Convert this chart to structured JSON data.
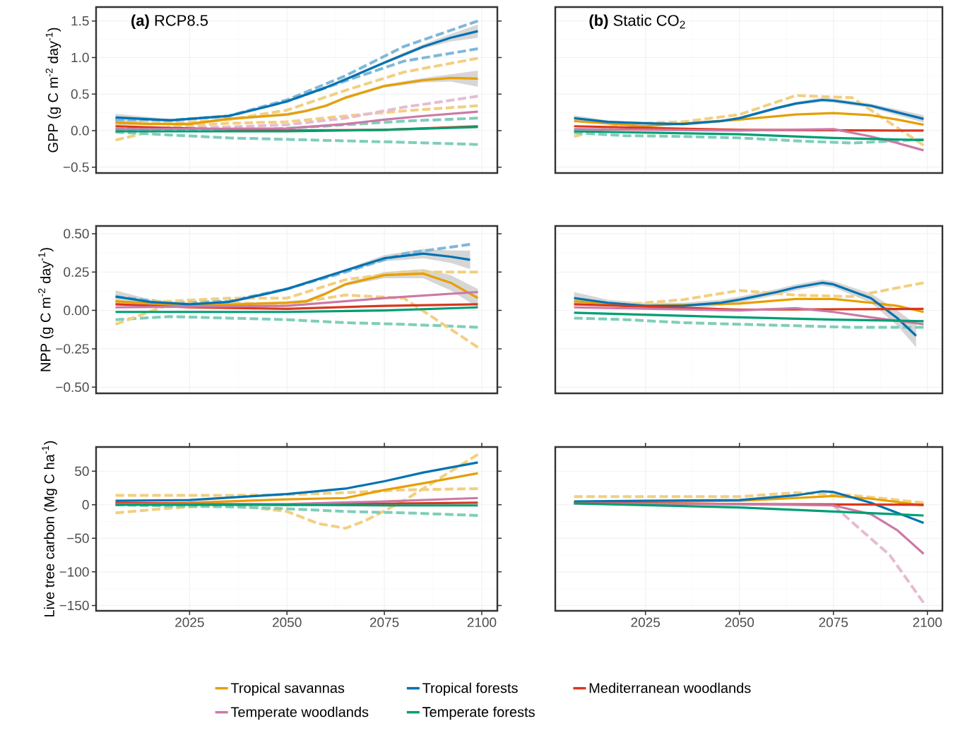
{
  "chart_data": [
    {
      "type": "line",
      "title": "**(a)** RCP8.5",
      "ylabel": "GPP (g C m$^{-2}$ day$^{-1}$)",
      "xlim": [
        2001,
        2104
      ],
      "ylim": [
        -0.58,
        1.69
      ],
      "xticks": [
        2025,
        2050,
        2075,
        2100
      ],
      "yticks": [
        {
          "value": -0.5,
          "label": "−0.5"
        },
        {
          "value": 0,
          "label": "0.0"
        },
        {
          "value": 0.5,
          "label": "0.5"
        },
        {
          "value": 1,
          "label": "1.0"
        },
        {
          "value": 1.5,
          "label": "1.5"
        }
      ],
      "grid": true,
      "tick_labels": "y",
      "line_style": "solid",
      "series": [
        {
          "color": "#E69F00",
          "x": [
            2006,
            2015,
            2025,
            2035,
            2045,
            2050,
            2055,
            2060,
            2065,
            2075,
            2085,
            2092,
            2099
          ],
          "values": [
            0.11,
            0.09,
            0.09,
            0.16,
            0.2,
            0.22,
            0.27,
            0.34,
            0.45,
            0.61,
            0.69,
            0.72,
            0.71
          ],
          "lower": [
            0.07,
            0.08,
            0.07,
            0.14,
            0.18,
            0.2,
            0.25,
            0.32,
            0.43,
            0.59,
            0.66,
            0.67,
            0.6
          ],
          "upper": [
            0.15,
            0.11,
            0.11,
            0.18,
            0.22,
            0.24,
            0.29,
            0.36,
            0.47,
            0.63,
            0.72,
            0.77,
            0.82
          ]
        },
        {
          "color": "#0072B2",
          "x": [
            2006,
            2020,
            2035,
            2045,
            2050,
            2060,
            2065,
            2075,
            2085,
            2092,
            2099
          ],
          "values": [
            0.18,
            0.14,
            0.2,
            0.33,
            0.4,
            0.59,
            0.7,
            0.93,
            1.15,
            1.27,
            1.36
          ],
          "lower": [
            0.13,
            0.12,
            0.18,
            0.31,
            0.38,
            0.57,
            0.68,
            0.91,
            1.12,
            1.22,
            1.27
          ],
          "upper": [
            0.23,
            0.16,
            0.22,
            0.35,
            0.42,
            0.61,
            0.72,
            0.95,
            1.18,
            1.32,
            1.45
          ]
        },
        {
          "color": "#D9381E",
          "x": [
            2006,
            2025,
            2050,
            2075,
            2099
          ],
          "values": [
            0.06,
            0.03,
            0.0,
            0.01,
            0.06
          ]
        },
        {
          "color": "#CC79A7",
          "x": [
            2006,
            2050,
            2065,
            2075,
            2085,
            2099
          ],
          "values": [
            0.02,
            0.03,
            0.09,
            0.15,
            0.2,
            0.26
          ]
        },
        {
          "color": "#009E73",
          "x": [
            2006,
            2050,
            2075,
            2099
          ],
          "values": [
            -0.01,
            -0.01,
            0.01,
            0.05
          ]
        },
        {
          "color": "#7FB8D8",
          "line_style": "dashed",
          "x": [
            2006,
            2020,
            2035,
            2050,
            2065,
            2080,
            2099
          ],
          "values": [
            0.15,
            0.14,
            0.2,
            0.42,
            0.75,
            1.15,
            1.5
          ]
        },
        {
          "color": "#7FB8D8",
          "line_style": "dashed",
          "x": [
            2006,
            2020,
            2035,
            2050,
            2065,
            2080,
            2099
          ],
          "values": [
            0.15,
            0.14,
            0.2,
            0.4,
            0.68,
            0.95,
            1.12
          ]
        },
        {
          "color": "#F2CF80",
          "line_style": "dashed",
          "x": [
            2006,
            2020,
            2035,
            2050,
            2065,
            2080,
            2099
          ],
          "values": [
            0.1,
            0.1,
            0.15,
            0.28,
            0.55,
            0.8,
            0.99
          ]
        },
        {
          "color": "#F2CF80",
          "line_style": "dashed",
          "x": [
            2006,
            2020,
            2035,
            2050,
            2065,
            2080,
            2099
          ],
          "values": [
            -0.13,
            0.05,
            0.1,
            0.12,
            0.2,
            0.27,
            0.34
          ]
        },
        {
          "color": "#E5BCD3",
          "line_style": "dashed",
          "x": [
            2006,
            2020,
            2035,
            2050,
            2065,
            2080,
            2099
          ],
          "values": [
            0.05,
            0.03,
            0.05,
            0.08,
            0.17,
            0.32,
            0.47
          ]
        },
        {
          "color": "#7FCEB9",
          "line_style": "dashed",
          "x": [
            2006,
            2020,
            2035,
            2050,
            2065,
            2080,
            2099
          ],
          "values": [
            -0.02,
            -0.06,
            -0.1,
            -0.12,
            -0.14,
            -0.16,
            -0.19
          ]
        },
        {
          "color": "#7FCEB9",
          "line_style": "dashed",
          "x": [
            2006,
            2020,
            2035,
            2050,
            2065,
            2080,
            2099
          ],
          "values": [
            0.02,
            0.0,
            0.0,
            0.03,
            0.08,
            0.13,
            0.17
          ]
        }
      ]
    },
    {
      "type": "line",
      "title": "**(b)** Static CO$_{2}$",
      "xlim": [
        2001,
        2104
      ],
      "ylim": [
        -0.58,
        1.69
      ],
      "xticks": [
        2025,
        2050,
        2075,
        2100
      ],
      "yticks": [
        {
          "value": -0.5,
          "label": null
        },
        {
          "value": 0,
          "label": null
        },
        {
          "value": 0.5,
          "label": null
        },
        {
          "value": 1,
          "label": null
        },
        {
          "value": 1.5,
          "label": null
        }
      ],
      "grid": true,
      "tick_labels": false,
      "line_style": "solid",
      "series": [
        {
          "color": "#E69F00",
          "x": [
            2006,
            2025,
            2050,
            2065,
            2075,
            2085,
            2092,
            2099
          ],
          "values": [
            0.13,
            0.06,
            0.15,
            0.22,
            0.24,
            0.21,
            0.15,
            0.08
          ]
        },
        {
          "color": "#0072B2",
          "x": [
            2006,
            2015,
            2025,
            2035,
            2045,
            2050,
            2060,
            2065,
            2072,
            2075,
            2085,
            2092,
            2099
          ],
          "values": [
            0.17,
            0.12,
            0.1,
            0.09,
            0.13,
            0.17,
            0.31,
            0.37,
            0.42,
            0.41,
            0.34,
            0.25,
            0.16
          ],
          "lower": [
            0.13,
            0.1,
            0.08,
            0.07,
            0.11,
            0.15,
            0.29,
            0.35,
            0.39,
            0.38,
            0.31,
            0.21,
            0.11
          ],
          "upper": [
            0.21,
            0.14,
            0.12,
            0.11,
            0.15,
            0.19,
            0.33,
            0.39,
            0.45,
            0.44,
            0.37,
            0.29,
            0.21
          ]
        },
        {
          "color": "#D9381E",
          "x": [
            2006,
            2050,
            2099
          ],
          "values": [
            0.06,
            0.01,
            0.0
          ]
        },
        {
          "color": "#CC79A7",
          "x": [
            2006,
            2050,
            2075,
            2085,
            2092,
            2099
          ],
          "values": [
            0.02,
            0.0,
            0.02,
            -0.08,
            -0.17,
            -0.27
          ]
        },
        {
          "color": "#009E73",
          "x": [
            2006,
            2050,
            2075,
            2099
          ],
          "values": [
            -0.01,
            -0.05,
            -0.1,
            -0.13
          ]
        },
        {
          "color": "#F2CF80",
          "line_style": "dashed",
          "x": [
            2006,
            2020,
            2035,
            2050,
            2065,
            2080,
            2099
          ],
          "values": [
            -0.08,
            0.1,
            0.12,
            0.22,
            0.48,
            0.45,
            -0.2
          ]
        },
        {
          "color": "#7FCEB9",
          "line_style": "dashed",
          "x": [
            2006,
            2020,
            2035,
            2050,
            2065,
            2080,
            2099
          ],
          "values": [
            -0.03,
            -0.07,
            -0.08,
            -0.1,
            -0.14,
            -0.17,
            -0.12
          ]
        }
      ]
    },
    {
      "type": "line",
      "ylabel": "NPP (g C m$^{-2}$ day$^{-1}$)",
      "xlim": [
        2001,
        2104
      ],
      "ylim": [
        -0.54,
        0.55
      ],
      "xticks": [
        2025,
        2050,
        2075,
        2100
      ],
      "yticks": [
        {
          "value": -0.5,
          "label": "−0.50"
        },
        {
          "value": -0.25,
          "label": "−0.25"
        },
        {
          "value": 0,
          "label": "0.00"
        },
        {
          "value": 0.25,
          "label": "0.25"
        },
        {
          "value": 0.5,
          "label": "0.50"
        }
      ],
      "grid": true,
      "tick_labels": "y",
      "line_style": "solid",
      "series": [
        {
          "color": "#E69F00",
          "x": [
            2006,
            2025,
            2050,
            2055,
            2060,
            2065,
            2075,
            2085,
            2092,
            2099
          ],
          "values": [
            0.06,
            0.03,
            0.05,
            0.06,
            0.11,
            0.17,
            0.23,
            0.24,
            0.18,
            0.08
          ],
          "lower": [
            0.03,
            0.02,
            0.04,
            0.05,
            0.1,
            0.16,
            0.21,
            0.21,
            0.13,
            0.02
          ],
          "upper": [
            0.09,
            0.04,
            0.06,
            0.07,
            0.12,
            0.18,
            0.25,
            0.27,
            0.23,
            0.14
          ]
        },
        {
          "color": "#0072B2",
          "x": [
            2006,
            2015,
            2025,
            2035,
            2045,
            2050,
            2060,
            2065,
            2075,
            2085,
            2092,
            2097
          ],
          "values": [
            0.09,
            0.055,
            0.04,
            0.055,
            0.11,
            0.14,
            0.22,
            0.26,
            0.34,
            0.37,
            0.35,
            0.33
          ],
          "lower": [
            0.05,
            0.04,
            0.03,
            0.045,
            0.1,
            0.13,
            0.21,
            0.25,
            0.32,
            0.34,
            0.31,
            0.27
          ],
          "upper": [
            0.13,
            0.07,
            0.05,
            0.065,
            0.12,
            0.15,
            0.23,
            0.27,
            0.36,
            0.4,
            0.39,
            0.39
          ]
        },
        {
          "color": "#D9381E",
          "x": [
            2006,
            2025,
            2050,
            2075,
            2099
          ],
          "values": [
            0.04,
            0.02,
            0.01,
            0.03,
            0.04
          ]
        },
        {
          "color": "#CC79A7",
          "x": [
            2006,
            2050,
            2075,
            2099
          ],
          "values": [
            0.02,
            0.03,
            0.08,
            0.12
          ]
        },
        {
          "color": "#009E73",
          "x": [
            2006,
            2050,
            2075,
            2099
          ],
          "values": [
            -0.01,
            -0.01,
            0.0,
            0.02
          ]
        },
        {
          "color": "#7FB8D8",
          "line_style": "dashed",
          "x": [
            2006,
            2020,
            2035,
            2050,
            2065,
            2080,
            2097
          ],
          "values": [
            0.09,
            0.05,
            0.06,
            0.14,
            0.25,
            0.37,
            0.43
          ]
        },
        {
          "color": "#7FCEB9",
          "line_style": "dashed",
          "x": [
            2006,
            2020,
            2035,
            2050,
            2065,
            2080,
            2099
          ],
          "values": [
            -0.06,
            -0.04,
            -0.05,
            -0.06,
            -0.08,
            -0.09,
            -0.11
          ]
        },
        {
          "color": "#F2CF80",
          "line_style": "dashed",
          "x": [
            2006,
            2020,
            2035,
            2050,
            2065,
            2080,
            2099
          ],
          "values": [
            -0.09,
            0.04,
            0.05,
            0.04,
            0.1,
            0.08,
            -0.24
          ]
        },
        {
          "color": "#F2CF80",
          "line_style": "dashed",
          "x": [
            2006,
            2020,
            2035,
            2050,
            2065,
            2080,
            2099
          ],
          "values": [
            0.05,
            0.06,
            0.08,
            0.08,
            0.2,
            0.25,
            0.25
          ]
        }
      ]
    },
    {
      "type": "line",
      "xlim": [
        2001,
        2104
      ],
      "ylim": [
        -0.54,
        0.55
      ],
      "xticks": [
        2025,
        2050,
        2075,
        2100
      ],
      "yticks": [
        {
          "value": -0.5,
          "label": null
        },
        {
          "value": -0.25,
          "label": null
        },
        {
          "value": 0,
          "label": null
        },
        {
          "value": 0.25,
          "label": null
        },
        {
          "value": 0.5,
          "label": null
        }
      ],
      "grid": true,
      "tick_labels": false,
      "line_style": "solid",
      "series": [
        {
          "color": "#E69F00",
          "x": [
            2006,
            2025,
            2050,
            2065,
            2075,
            2085,
            2092,
            2099
          ],
          "values": [
            0.06,
            0.03,
            0.045,
            0.075,
            0.075,
            0.05,
            0.03,
            -0.01
          ]
        },
        {
          "color": "#0072B2",
          "x": [
            2006,
            2015,
            2025,
            2035,
            2045,
            2050,
            2060,
            2065,
            2072,
            2075,
            2085,
            2092,
            2097
          ],
          "values": [
            0.08,
            0.05,
            0.03,
            0.03,
            0.05,
            0.07,
            0.12,
            0.15,
            0.18,
            0.17,
            0.08,
            -0.05,
            -0.165
          ],
          "lower": [
            0.04,
            0.03,
            0.01,
            0.01,
            0.03,
            0.05,
            0.1,
            0.13,
            0.16,
            0.15,
            0.05,
            -0.1,
            -0.24
          ],
          "upper": [
            0.12,
            0.07,
            0.05,
            0.05,
            0.07,
            0.09,
            0.14,
            0.17,
            0.2,
            0.19,
            0.11,
            0.0,
            -0.09
          ]
        },
        {
          "color": "#D9381E",
          "x": [
            2006,
            2050,
            2099
          ],
          "values": [
            0.04,
            0.005,
            0.01
          ]
        },
        {
          "color": "#CC79A7",
          "x": [
            2006,
            2050,
            2065,
            2075,
            2085,
            2099
          ],
          "values": [
            0.02,
            0.0,
            0.015,
            -0.01,
            -0.045,
            -0.09
          ]
        },
        {
          "color": "#009E73",
          "x": [
            2006,
            2050,
            2075,
            2099
          ],
          "values": [
            -0.015,
            -0.045,
            -0.06,
            -0.07
          ]
        },
        {
          "color": "#7FCEB9",
          "line_style": "dashed",
          "x": [
            2006,
            2020,
            2035,
            2050,
            2065,
            2080,
            2099
          ],
          "values": [
            -0.05,
            -0.06,
            -0.08,
            -0.09,
            -0.1,
            -0.11,
            -0.11
          ]
        },
        {
          "color": "#F2CF80",
          "line_style": "dashed",
          "x": [
            2006,
            2020,
            2035,
            2050,
            2065,
            2080,
            2099
          ],
          "values": [
            0.04,
            0.04,
            0.07,
            0.13,
            0.1,
            0.09,
            0.18
          ]
        }
      ]
    },
    {
      "type": "line",
      "ylabel": "Live tree carbon (Mg C ha$^{-1}$)",
      "xlim": [
        2001,
        2104
      ],
      "ylim": [
        -158,
        86
      ],
      "xticks": [
        2025,
        2050,
        2075,
        2100
      ],
      "yticks": [
        {
          "value": -150,
          "label": "−150"
        },
        {
          "value": -100,
          "label": "−100"
        },
        {
          "value": -50,
          "label": "−50"
        },
        0,
        50
      ],
      "grid": true,
      "legend": "bottom",
      "line_style": "solid",
      "series": [
        {
          "name": "Tropical savannas",
          "color": "#E69F00",
          "x": [
            2006,
            2025,
            2050,
            2065,
            2075,
            2085,
            2099
          ],
          "values": [
            2,
            3,
            8,
            10,
            22,
            32,
            47
          ]
        },
        {
          "name": "Tropical forests",
          "color": "#0072B2",
          "x": [
            2006,
            2025,
            2050,
            2065,
            2075,
            2085,
            2099
          ],
          "values": [
            6,
            7,
            16,
            24,
            35,
            48,
            63
          ]
        },
        {
          "name": "Mediterranean woodlands",
          "color": "#D9381E",
          "x": [
            2006,
            2050,
            2099
          ],
          "values": [
            3,
            0,
            3
          ]
        },
        {
          "name": "Temperate woodlands",
          "color": "#CC79A7",
          "x": [
            2006,
            2050,
            2075,
            2099
          ],
          "values": [
            1,
            1,
            5,
            10
          ]
        },
        {
          "name": "Temperate forests",
          "color": "#009E73",
          "x": [
            2006,
            2050,
            2075,
            2099
          ],
          "values": [
            0,
            0,
            -1,
            -1
          ]
        },
        {
          "color": "#F2CF80",
          "line_style": "dashed",
          "x": [
            2006,
            2020,
            2035,
            2050,
            2058,
            2065,
            2070,
            2080,
            2099
          ],
          "values": [
            -12,
            -5,
            0,
            -10,
            -28,
            -35,
            -24,
            6,
            75
          ]
        },
        {
          "color": "#7FCEB9",
          "line_style": "dashed",
          "x": [
            2006,
            2020,
            2035,
            2050,
            2065,
            2080,
            2099
          ],
          "values": [
            0,
            -2,
            -3,
            -6,
            -10,
            -12,
            -16
          ]
        },
        {
          "color": "#F2CF80",
          "line_style": "dashed",
          "x": [
            2006,
            2020,
            2035,
            2050,
            2065,
            2080,
            2099
          ],
          "values": [
            14,
            14,
            14,
            15,
            18,
            22,
            24
          ]
        }
      ]
    },
    {
      "type": "line",
      "xlim": [
        2001,
        2104
      ],
      "ylim": [
        -158,
        86
      ],
      "xticks": [
        2025,
        2050,
        2075,
        2100
      ],
      "yticks": [
        {
          "value": -150,
          "label": null
        },
        {
          "value": -100,
          "label": null
        },
        {
          "value": -50,
          "label": null
        },
        {
          "value": 0,
          "label": null
        },
        {
          "value": 50,
          "label": null
        }
      ],
      "grid": true,
      "tick_labels": "x",
      "line_style": "solid",
      "series": [
        {
          "color": "#E69F00",
          "x": [
            2006,
            2050,
            2065,
            2075,
            2085,
            2099
          ],
          "values": [
            3,
            6,
            10,
            13,
            9,
            -1
          ]
        },
        {
          "color": "#0072B2",
          "x": [
            2006,
            2025,
            2050,
            2065,
            2072,
            2075,
            2085,
            2092,
            2099
          ],
          "values": [
            5,
            6,
            7,
            14,
            20,
            19,
            3,
            -12,
            -27
          ]
        },
        {
          "color": "#D9381E",
          "x": [
            2006,
            2050,
            2099
          ],
          "values": [
            3,
            1,
            0
          ]
        },
        {
          "color": "#CC79A7",
          "x": [
            2006,
            2050,
            2075,
            2085,
            2092,
            2099
          ],
          "values": [
            2,
            1,
            -1,
            -14,
            -38,
            -73
          ]
        },
        {
          "color": "#009E73",
          "x": [
            2006,
            2050,
            2075,
            2099
          ],
          "values": [
            2,
            -4,
            -10,
            -16
          ]
        },
        {
          "color": "#E5BCD3",
          "line_style": "dashed",
          "x": [
            2075,
            2080,
            2090,
            2099
          ],
          "values": [
            -1,
            -26,
            -75,
            -146
          ]
        },
        {
          "color": "#F2CF80",
          "line_style": "dashed",
          "x": [
            2006,
            2020,
            2035,
            2050,
            2065,
            2080,
            2099
          ],
          "values": [
            12,
            12,
            12,
            12,
            18,
            14,
            3
          ]
        }
      ]
    }
  ]
}
